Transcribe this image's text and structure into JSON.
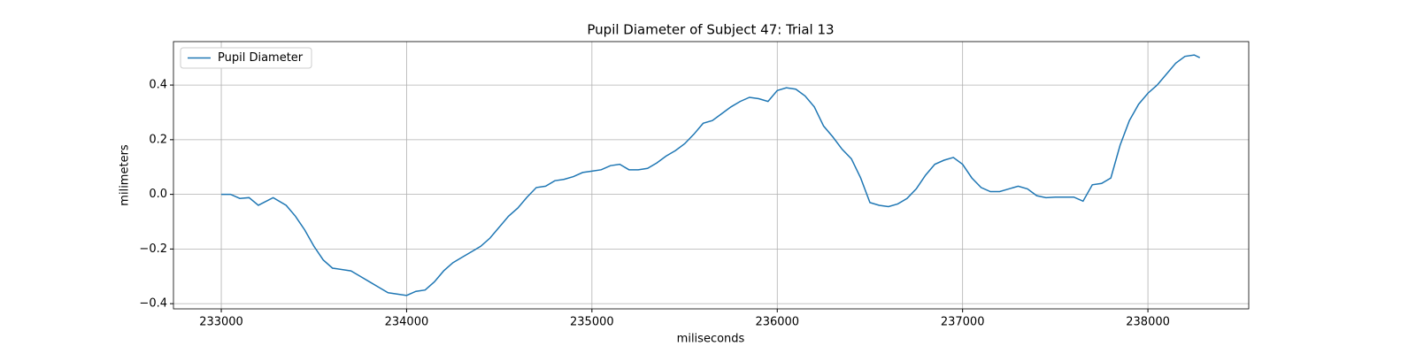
{
  "chart_data": {
    "type": "line",
    "title": "Pupil Diameter of Subject 47: Trial 13",
    "xlabel": "miliseconds",
    "ylabel": "milimeters",
    "x": [
      233000,
      233050,
      233100,
      233150,
      233200,
      233280,
      233350,
      233400,
      233450,
      233500,
      233550,
      233600,
      233700,
      233750,
      233800,
      233850,
      233900,
      234000,
      234050,
      234100,
      234150,
      234200,
      234250,
      234300,
      234350,
      234400,
      234450,
      234500,
      234550,
      234600,
      234650,
      234700,
      234750,
      234800,
      234850,
      234900,
      234950,
      235000,
      235050,
      235100,
      235150,
      235200,
      235250,
      235300,
      235350,
      235400,
      235450,
      235500,
      235550,
      235600,
      235650,
      235700,
      235750,
      235800,
      235850,
      235900,
      235950,
      236000,
      236050,
      236100,
      236150,
      236200,
      236250,
      236300,
      236350,
      236400,
      236450,
      236500,
      236550,
      236600,
      236650,
      236700,
      236750,
      236800,
      236850,
      236900,
      236950,
      237000,
      237050,
      237100,
      237150,
      237200,
      237250,
      237300,
      237350,
      237400,
      237450,
      237500,
      237550,
      237600,
      237650,
      237700,
      237750,
      237800,
      237850,
      237900,
      237950,
      238000,
      238050,
      238100,
      238150,
      238200,
      238250,
      238280
    ],
    "series": [
      {
        "name": "Pupil Diameter",
        "color": "#1f77b4",
        "values": [
          0.0,
          0.0,
          -0.015,
          -0.012,
          -0.04,
          -0.012,
          -0.04,
          -0.08,
          -0.13,
          -0.19,
          -0.24,
          -0.27,
          -0.28,
          -0.3,
          -0.32,
          -0.34,
          -0.36,
          -0.37,
          -0.355,
          -0.35,
          -0.32,
          -0.28,
          -0.25,
          -0.23,
          -0.21,
          -0.19,
          -0.16,
          -0.12,
          -0.08,
          -0.05,
          -0.01,
          0.025,
          0.03,
          0.05,
          0.055,
          0.065,
          0.08,
          0.085,
          0.09,
          0.105,
          0.11,
          0.09,
          0.09,
          0.095,
          0.115,
          0.14,
          0.16,
          0.185,
          0.22,
          0.26,
          0.27,
          0.295,
          0.32,
          0.34,
          0.355,
          0.35,
          0.34,
          0.38,
          0.39,
          0.385,
          0.36,
          0.32,
          0.25,
          0.21,
          0.165,
          0.13,
          0.06,
          -0.03,
          -0.04,
          -0.045,
          -0.035,
          -0.015,
          0.02,
          0.07,
          0.11,
          0.125,
          0.135,
          0.11,
          0.06,
          0.025,
          0.01,
          0.01,
          0.02,
          0.03,
          0.02,
          -0.005,
          -0.012,
          -0.01,
          -0.01,
          -0.01,
          -0.025,
          0.035,
          0.04,
          0.06,
          0.18,
          0.27,
          0.33,
          0.37,
          0.4,
          0.44,
          0.48,
          0.505,
          0.51,
          0.5
        ]
      }
    ],
    "xlim": [
      232742,
      238544
    ],
    "ylim": [
      -0.419,
      0.559
    ],
    "xticks": [
      233000,
      234000,
      235000,
      236000,
      237000,
      238000
    ],
    "yticks": [
      {
        "value": -0.4,
        "label": "−0.4"
      },
      {
        "value": -0.2,
        "label": "−0.2"
      },
      {
        "value": 0.0,
        "label": "0.0"
      },
      {
        "value": 0.2,
        "label": "0.2"
      },
      {
        "value": 0.4,
        "label": "0.4"
      }
    ],
    "grid": true,
    "legend": "upper left"
  }
}
